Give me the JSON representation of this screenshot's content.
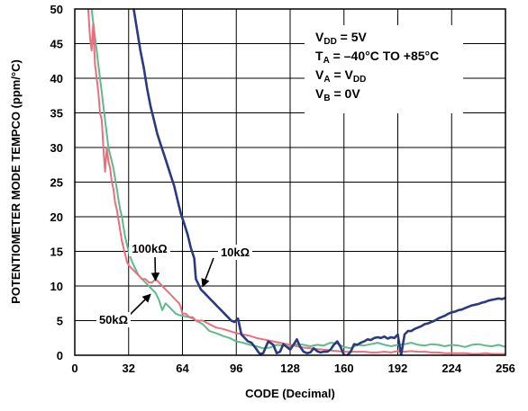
{
  "chart_data": {
    "type": "line",
    "title": "",
    "xlabel": "CODE (Decimal)",
    "ylabel": "POTENTIOMETER MODE TEMPCO (ppm/°C)",
    "xlim": [
      0,
      256
    ],
    "ylim": [
      0,
      50
    ],
    "xticks": [
      0,
      32,
      64,
      96,
      128,
      160,
      192,
      224,
      256
    ],
    "yticks": [
      0,
      5,
      10,
      15,
      20,
      25,
      30,
      35,
      40,
      45,
      50
    ],
    "grid": true,
    "annotations": [
      {
        "parts": [
          {
            "text": "V"
          },
          {
            "text": "DD",
            "sub": true
          },
          {
            "text": " = 5V"
          }
        ]
      },
      {
        "parts": [
          {
            "text": "T"
          },
          {
            "text": "A",
            "sub": true
          },
          {
            "text": " = –40°C TO +85°C"
          }
        ]
      },
      {
        "parts": [
          {
            "text": "V"
          },
          {
            "text": "A",
            "sub": true
          },
          {
            "text": " = V"
          },
          {
            "text": "DD",
            "sub": true
          }
        ]
      },
      {
        "parts": [
          {
            "text": "V"
          },
          {
            "text": "B",
            "sub": true
          },
          {
            "text": " = 0V"
          }
        ]
      }
    ],
    "series": [
      {
        "name": "10kΩ",
        "color": "#2b3a7c",
        "x": [
          35,
          37,
          39,
          41,
          43,
          45,
          47,
          49,
          51,
          53,
          55,
          57,
          59,
          61,
          63,
          65,
          67,
          69,
          71,
          72,
          73,
          75,
          77,
          79,
          81,
          83,
          85,
          87,
          89,
          91,
          93,
          95,
          97,
          99,
          101,
          103,
          105,
          107,
          109,
          110,
          112,
          115,
          118,
          120,
          122,
          124,
          126,
          128,
          130,
          132,
          134,
          136,
          138,
          140,
          142,
          144,
          146,
          148,
          150,
          152,
          154,
          156,
          158,
          160,
          162,
          164,
          166,
          168,
          170,
          172,
          174,
          176,
          178,
          180,
          182,
          184,
          186,
          188,
          190,
          192,
          194,
          196,
          198,
          200,
          202,
          204,
          206,
          208,
          210,
          212,
          214,
          216,
          218,
          220,
          222,
          224,
          226,
          228,
          230,
          232,
          234,
          236,
          238,
          240,
          242,
          244,
          246,
          248,
          250,
          252,
          254,
          256
        ],
        "values": [
          50,
          47,
          44,
          41.5,
          38.5,
          36,
          34,
          32,
          30.5,
          29,
          27.5,
          26,
          24.5,
          22.5,
          20.5,
          19,
          17.5,
          15.5,
          14,
          11,
          10.5,
          9.5,
          9,
          8.5,
          8,
          7.5,
          7,
          6.5,
          6,
          5.5,
          5,
          4.8,
          5.3,
          3,
          2.5,
          2,
          1.8,
          1.2,
          0.5,
          0.2,
          0.3,
          2,
          1.5,
          0.3,
          0.5,
          1.6,
          1.2,
          0.8,
          1.5,
          2.3,
          1.2,
          0.5,
          0.3,
          0.4,
          1,
          0.6,
          0.4,
          0.5,
          0.5,
          0.8,
          1.5,
          2,
          1.2,
          0,
          0,
          0.5,
          1.6,
          1.5,
          1.8,
          2,
          2.3,
          2.2,
          2.5,
          2.6,
          2.5,
          2.7,
          2.4,
          2.6,
          2.5,
          3,
          0,
          3,
          3.5,
          3.5,
          3.8,
          4,
          4.2,
          4.5,
          4.6,
          4.8,
          5,
          5.3,
          5.5,
          5.7,
          6,
          6.2,
          6.3,
          6.5,
          6.6,
          6.8,
          7,
          7.2,
          7.3,
          7.4,
          7.6,
          7.7,
          7.9,
          8,
          8.1,
          8.2,
          8.1,
          8.3
        ]
      },
      {
        "name": "100kΩ",
        "color": "#e8707e",
        "x": [
          8,
          9,
          10,
          11,
          12,
          13,
          14,
          15,
          16,
          17,
          18,
          19,
          20,
          21,
          22,
          23,
          24,
          25,
          26,
          27,
          28,
          29,
          30,
          31,
          32,
          34,
          36,
          38,
          40,
          42,
          44,
          46,
          48,
          50,
          52,
          54,
          56,
          58,
          60,
          62,
          63,
          64,
          66,
          68,
          70,
          72,
          76,
          80,
          84,
          88,
          92,
          96,
          100,
          104,
          108,
          112,
          116,
          120,
          124,
          128,
          132,
          136,
          140,
          144,
          148,
          152,
          156,
          160,
          164,
          168,
          172,
          176,
          180,
          184,
          188,
          192,
          196,
          200,
          204,
          208,
          212,
          216,
          220,
          224,
          228,
          232,
          236,
          240,
          244,
          248,
          252,
          256
        ],
        "values": [
          50,
          46,
          44,
          48,
          42,
          40,
          38,
          35,
          34,
          30,
          26.5,
          30,
          28,
          27,
          25,
          24,
          22,
          21,
          19.5,
          18,
          16.5,
          15.5,
          14.5,
          13.5,
          13,
          12.5,
          12,
          11.5,
          11,
          11,
          10.5,
          10.5,
          11,
          10.5,
          10,
          9.5,
          9,
          8.5,
          8,
          7.5,
          7,
          6,
          6,
          5.5,
          5.5,
          5,
          5,
          4.5,
          4,
          3.8,
          3.5,
          3.2,
          3,
          2.8,
          2.5,
          2.3,
          2.1,
          1.9,
          1.7,
          1.5,
          1.3,
          1.1,
          1,
          0.9,
          0.8,
          0.7,
          0.6,
          0.5,
          0.5,
          0.5,
          0.5,
          0.4,
          0.4,
          0.5,
          0.4,
          0.6,
          0.5,
          0.6,
          0.5,
          0.5,
          0.4,
          0.4,
          0.3,
          0.3,
          0.3,
          0.3,
          0.2,
          0.2,
          0.3,
          0.2,
          0.2,
          0.2
        ]
      },
      {
        "name": "50kΩ",
        "color": "#5fba8b",
        "x": [
          10,
          11,
          12,
          13,
          14,
          15,
          16,
          17,
          18,
          19,
          20,
          21,
          22,
          23,
          24,
          25,
          26,
          27,
          28,
          29,
          30,
          31,
          32,
          34,
          36,
          38,
          40,
          42,
          44,
          46,
          48,
          50,
          52,
          54,
          56,
          58,
          60,
          62,
          64,
          66,
          68,
          70,
          72,
          76,
          80,
          84,
          88,
          92,
          96,
          100,
          104,
          108,
          112,
          116,
          120,
          124,
          128,
          132,
          136,
          140,
          144,
          148,
          152,
          156,
          160,
          164,
          168,
          172,
          176,
          180,
          184,
          188,
          192,
          196,
          200,
          204,
          208,
          212,
          216,
          220,
          224,
          228,
          232,
          236,
          240,
          244,
          248,
          252,
          256
        ],
        "values": [
          50,
          48,
          46,
          44,
          42,
          40,
          38,
          36,
          34,
          32,
          30,
          29,
          28,
          27,
          25.5,
          24,
          22.5,
          21,
          20,
          18.5,
          17,
          16,
          15,
          13.5,
          12.5,
          11.5,
          11,
          10.5,
          10,
          9.5,
          9,
          8,
          6.5,
          7.5,
          7,
          6.5,
          6,
          5.8,
          5.7,
          5.6,
          5.5,
          5.3,
          5,
          4.5,
          3.5,
          3.2,
          2.8,
          2.5,
          2,
          1.8,
          1.5,
          1.3,
          1,
          1.1,
          1.5,
          1.4,
          1.2,
          1.6,
          1.5,
          1.3,
          1.5,
          1.4,
          1.8,
          1.7,
          1.2,
          1,
          1.5,
          1.4,
          1.6,
          1.8,
          1.5,
          1.3,
          1.5,
          1.6,
          1.8,
          1.5,
          1.4,
          1.6,
          1.5,
          1.3,
          1.5,
          1.4,
          1.2,
          1.5,
          1.6,
          1.4,
          1.3,
          1.5,
          1.2
        ]
      }
    ],
    "callouts": [
      {
        "label": "100kΩ",
        "series": "100kΩ"
      },
      {
        "label": "10kΩ",
        "series": "10kΩ"
      },
      {
        "label": "50kΩ",
        "series": "50kΩ"
      }
    ]
  }
}
